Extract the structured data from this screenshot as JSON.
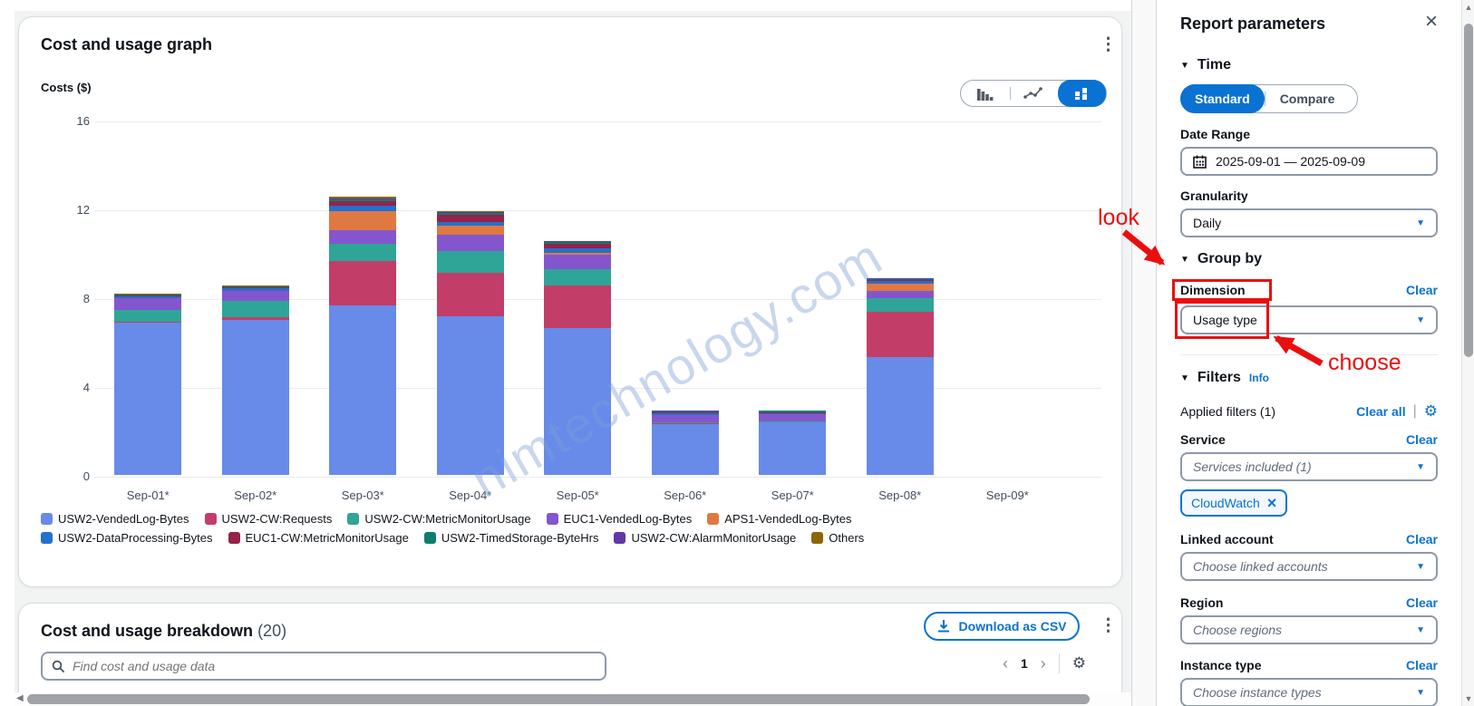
{
  "chart_card": {
    "title": "Cost and usage graph",
    "y_axis_label": "Costs ($)",
    "chart_type_options": [
      "bar-chart",
      "line-chart",
      "stacked-bar-chart"
    ],
    "selected_chart_type": "stacked-bar-chart"
  },
  "chart_data": {
    "type": "bar",
    "stacked": true,
    "title": "Cost and usage graph",
    "ylabel": "Costs ($)",
    "ylim": [
      0,
      16
    ],
    "y_ticks": [
      16,
      12,
      8,
      4,
      0
    ],
    "grid": true,
    "legend_position": "bottom",
    "categories": [
      "Sep-01*",
      "Sep-02*",
      "Sep-03*",
      "Sep-04*",
      "Sep-05*",
      "Sep-06*",
      "Sep-07*",
      "Sep-08*",
      "Sep-09*"
    ],
    "series": [
      {
        "name": "USW2-VendedLog-Bytes",
        "color": "#688AE8",
        "values": [
          6.85,
          7.0,
          7.65,
          7.15,
          6.6,
          2.3,
          2.35,
          5.3,
          0
        ]
      },
      {
        "name": "USW2-CW:Requests",
        "color": "#C33D69",
        "values": [
          0.05,
          0.12,
          2.0,
          1.95,
          1.95,
          0.03,
          0.03,
          2.05,
          0
        ]
      },
      {
        "name": "USW2-CW:MetricMonitorUsage",
        "color": "#2EA597",
        "values": [
          0.55,
          0.72,
          0.75,
          1.0,
          0.7,
          0.04,
          0.04,
          0.6,
          0
        ]
      },
      {
        "name": "EUC1-VendedLog-Bytes",
        "color": "#8456CE",
        "values": [
          0.5,
          0.45,
          0.62,
          0.72,
          0.65,
          0.32,
          0.3,
          0.35,
          0
        ]
      },
      {
        "name": "APS1-VendedLog-Bytes",
        "color": "#E07941",
        "values": [
          0,
          0,
          0.85,
          0.4,
          0.12,
          0,
          0,
          0.3,
          0
        ]
      },
      {
        "name": "USW2-DataProcessing-Bytes",
        "color": "#2470CE",
        "values": [
          0.08,
          0.12,
          0.25,
          0.15,
          0.2,
          0.08,
          0.07,
          0.12,
          0
        ]
      },
      {
        "name": "EUC1-CW:MetricMonitorUsage",
        "color": "#962249",
        "values": [
          0.04,
          0.04,
          0.2,
          0.35,
          0.2,
          0.04,
          0.04,
          0.05,
          0
        ]
      },
      {
        "name": "USW2-TimedStorage-ByteHrs",
        "color": "#0E7C6E",
        "values": [
          0.04,
          0.04,
          0.08,
          0.08,
          0.06,
          0.06,
          0.06,
          0.04,
          0
        ]
      },
      {
        "name": "USW2-CW:AlarmMonitorUsage",
        "color": "#6237A7",
        "values": [
          0.02,
          0.02,
          0.05,
          0.05,
          0.04,
          0.02,
          0.02,
          0.03,
          0
        ]
      },
      {
        "name": "Others",
        "color": "#8D6605",
        "values": [
          0.02,
          0.02,
          0.07,
          0.05,
          0.02,
          0.01,
          0.01,
          0.04,
          0
        ]
      }
    ]
  },
  "watermark": "nimtechnology.com",
  "breakdown_card": {
    "title": "Cost and usage breakdown",
    "count": "(20)",
    "download_button": "Download as CSV",
    "search_placeholder": "Find cost and usage data",
    "page_number": "1"
  },
  "panel": {
    "title": "Report parameters",
    "clear_label": "Clear",
    "time": {
      "heading": "Time",
      "standard": "Standard",
      "compare": "Compare",
      "date_range_label": "Date Range",
      "date_range_value": "2025-09-01 — 2025-09-09",
      "granularity_label": "Granularity",
      "granularity_value": "Daily"
    },
    "group_by": {
      "heading": "Group by",
      "dimension_label": "Dimension",
      "dimension_value": "Usage type"
    },
    "filters": {
      "heading": "Filters",
      "info": "Info",
      "applied": "Applied filters (1)",
      "clear_all": "Clear all",
      "service_label": "Service",
      "service_value": "Services included (1)",
      "service_token": "CloudWatch",
      "linked_account_label": "Linked account",
      "linked_account_placeholder": "Choose linked accounts",
      "region_label": "Region",
      "region_placeholder": "Choose regions",
      "instance_type_label": "Instance type",
      "instance_type_placeholder": "Choose instance types"
    }
  },
  "annotations": {
    "look": "look",
    "choose": "choose",
    "accent_color": "#EA0F0F"
  },
  "colors": {
    "accent_blue": "#0972D3",
    "text": "#0F141A",
    "secondary_text": "#414D5C"
  }
}
